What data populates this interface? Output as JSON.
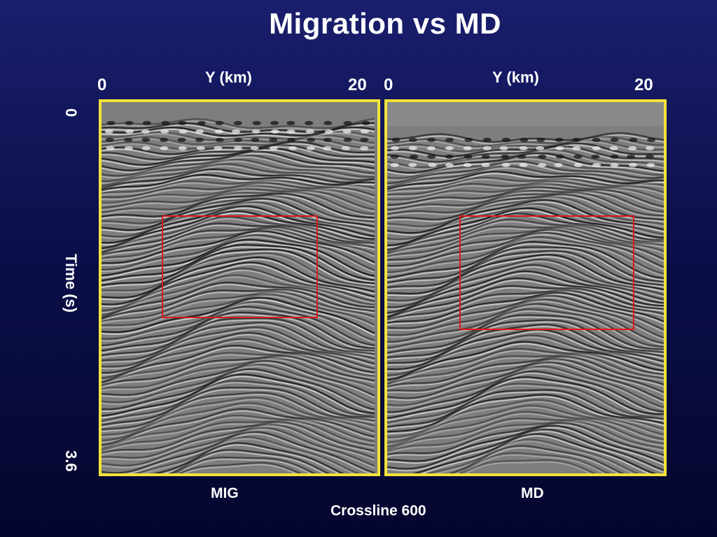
{
  "slide": {
    "title": "Migration vs MD",
    "footer": "Crossline 600"
  },
  "axes": {
    "time_label": "Time  (s)",
    "time_top": "0",
    "time_bottom": "3.6"
  },
  "panels": [
    {
      "name": "MIG",
      "x_label": "Y (km)",
      "x_min": "0",
      "x_max": "20"
    },
    {
      "name": "MD",
      "x_label": "Y (km)",
      "x_min": "0",
      "x_max": "20"
    }
  ],
  "colors": {
    "panel_border": "#f2e33a",
    "highlight_box": "#e01818",
    "background": "#0b0f4a"
  }
}
